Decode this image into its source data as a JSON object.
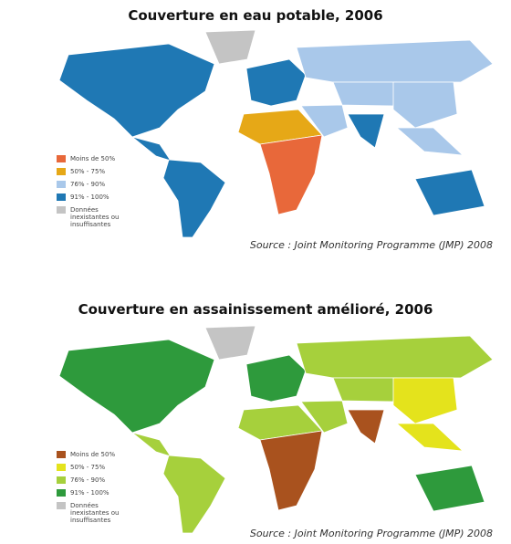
{
  "maps": [
    {
      "title": "Couverture en eau potable, 2006",
      "legend": [
        {
          "label": "Moins de 50%",
          "color": "#e8683a"
        },
        {
          "label": "50% - 75%",
          "color": "#e6a817"
        },
        {
          "label": "76% - 90%",
          "color": "#a9c8ea"
        },
        {
          "label": "91% - 100%",
          "color": "#1f78b4"
        },
        {
          "label": "Données inexistantes ou insuffisantes",
          "color": "#c4c4c4"
        }
      ],
      "source": "Source : Joint Monitoring Programme (JMP) 2008"
    },
    {
      "title": "Couverture en assainissement amélioré, 2006",
      "legend": [
        {
          "label": "Moins de 50%",
          "color": "#a9521e"
        },
        {
          "label": "50% - 75%",
          "color": "#e4e31c"
        },
        {
          "label": "76% - 90%",
          "color": "#a6d03c"
        },
        {
          "label": "91% - 100%",
          "color": "#2e9a3c"
        },
        {
          "label": "Données inexistantes ou insuffisantes",
          "color": "#c4c4c4"
        }
      ],
      "source": "Source : Joint Monitoring Programme (JMP) 2008"
    }
  ]
}
